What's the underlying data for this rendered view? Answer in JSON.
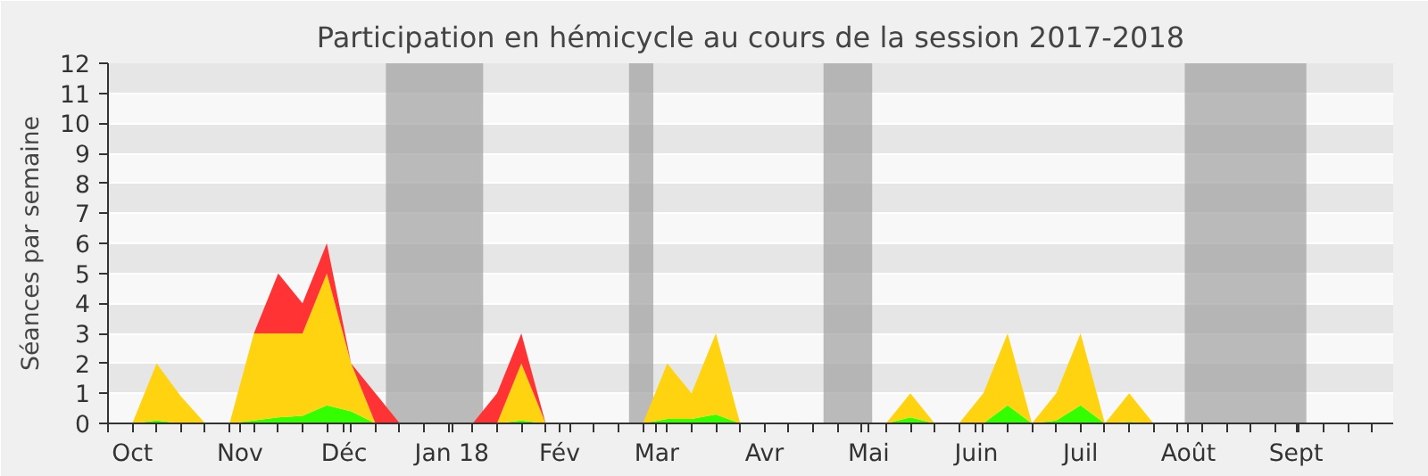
{
  "chart_data": {
    "type": "area",
    "title": "Participation en hémicycle au cours de la session 2017-2018",
    "ylabel": "Séances par semaine",
    "stacked": true,
    "x": [
      "2017-10-01",
      "2017-10-08",
      "2017-10-15",
      "2017-10-22",
      "2017-10-29",
      "2017-11-05",
      "2017-11-12",
      "2017-11-19",
      "2017-11-26",
      "2017-12-03",
      "2017-12-10",
      "2017-12-17",
      "2017-12-24",
      "2017-12-31",
      "2018-01-07",
      "2018-01-14",
      "2018-01-21",
      "2018-01-28",
      "2018-02-04",
      "2018-02-11",
      "2018-02-18",
      "2018-02-25",
      "2018-03-04",
      "2018-03-11",
      "2018-03-18",
      "2018-03-25",
      "2018-04-01",
      "2018-04-08",
      "2018-04-15",
      "2018-04-22",
      "2018-04-29",
      "2018-05-06",
      "2018-05-13",
      "2018-05-20",
      "2018-05-27",
      "2018-06-03",
      "2018-06-10",
      "2018-06-17",
      "2018-06-24",
      "2018-07-01",
      "2018-07-08",
      "2018-07-15",
      "2018-07-22",
      "2018-07-29",
      "2018-08-05",
      "2018-08-12",
      "2018-08-19",
      "2018-08-26",
      "2018-09-02",
      "2018-09-09",
      "2018-09-16",
      "2018-09-23"
    ],
    "series": [
      {
        "color": "#33ff00",
        "values": [
          0,
          0.1,
          0,
          0,
          0,
          0.1,
          0.2,
          0.25,
          0.6,
          0.4,
          0,
          0,
          0,
          0,
          0,
          0,
          0.1,
          0,
          0,
          0,
          0,
          0,
          0.15,
          0.15,
          0.3,
          0,
          0,
          0,
          0,
          0,
          0,
          0,
          0.2,
          0,
          0,
          0,
          0.6,
          0,
          0.1,
          0.6,
          0,
          0.05,
          0,
          0,
          0,
          0,
          0,
          0,
          0,
          0,
          0,
          0
        ]
      },
      {
        "color": "#ffd310",
        "values": [
          0,
          1.9,
          0.9,
          0,
          0,
          2.9,
          2.8,
          2.75,
          4.4,
          1.6,
          0,
          0,
          0,
          0,
          0,
          0,
          1.9,
          0,
          0,
          0,
          0,
          0,
          1.85,
          0.85,
          2.7,
          0,
          0,
          0,
          0,
          0,
          0,
          0,
          0.8,
          0,
          0,
          1,
          2.4,
          0,
          0.9,
          2.4,
          0,
          0.95,
          0,
          0,
          0,
          0,
          0,
          0,
          0,
          0,
          0,
          0
        ]
      },
      {
        "color": "#ff3333",
        "values": [
          0,
          0,
          0,
          0,
          0,
          0,
          2,
          1,
          1,
          0,
          1,
          0,
          0,
          0,
          0,
          1,
          1,
          0,
          0,
          0,
          0,
          0,
          0,
          0,
          0,
          0,
          0,
          0,
          0,
          0,
          0,
          0,
          0,
          0,
          0,
          0,
          0,
          0,
          0,
          0,
          0,
          0,
          0,
          0,
          0,
          0,
          0,
          0,
          0,
          0,
          0,
          0
        ]
      }
    ],
    "xlim": [
      "2017-09-24",
      "2018-09-29"
    ],
    "xticks": [
      {
        "value": "2017-09-24",
        "label": null
      },
      {
        "value": "2017-10-01",
        "label": "Oct"
      },
      {
        "value": "2017-10-08",
        "label": null
      },
      {
        "value": "2017-10-15",
        "label": null
      },
      {
        "value": "2017-10-22",
        "label": null
      },
      {
        "value": "2017-10-29",
        "label": null
      },
      {
        "value": "2017-11-01",
        "label": "Nov"
      },
      {
        "value": "2017-11-05",
        "label": null
      },
      {
        "value": "2017-11-12",
        "label": null
      },
      {
        "value": "2017-11-19",
        "label": null
      },
      {
        "value": "2017-11-26",
        "label": null
      },
      {
        "value": "2017-12-01",
        "label": "Déc"
      },
      {
        "value": "2017-12-03",
        "label": null
      },
      {
        "value": "2017-12-10",
        "label": null
      },
      {
        "value": "2017-12-17",
        "label": null
      },
      {
        "value": "2017-12-24",
        "label": null
      },
      {
        "value": "2017-12-31",
        "label": null
      },
      {
        "value": "2018-01-01",
        "label": "Jan 18"
      },
      {
        "value": "2018-01-07",
        "label": null
      },
      {
        "value": "2018-01-14",
        "label": null
      },
      {
        "value": "2018-01-21",
        "label": null
      },
      {
        "value": "2018-01-28",
        "label": null
      },
      {
        "value": "2018-02-01",
        "label": "Fév"
      },
      {
        "value": "2018-02-04",
        "label": null
      },
      {
        "value": "2018-02-11",
        "label": null
      },
      {
        "value": "2018-02-18",
        "label": null
      },
      {
        "value": "2018-02-25",
        "label": null
      },
      {
        "value": "2018-03-01",
        "label": "Mar"
      },
      {
        "value": "2018-03-04",
        "label": null
      },
      {
        "value": "2018-03-11",
        "label": null
      },
      {
        "value": "2018-03-18",
        "label": null
      },
      {
        "value": "2018-03-25",
        "label": null
      },
      {
        "value": "2018-04-01",
        "label": "Avr"
      },
      {
        "value": "2018-04-08",
        "label": null
      },
      {
        "value": "2018-04-15",
        "label": null
      },
      {
        "value": "2018-04-22",
        "label": null
      },
      {
        "value": "2018-04-29",
        "label": null
      },
      {
        "value": "2018-05-01",
        "label": "Mai"
      },
      {
        "value": "2018-05-06",
        "label": null
      },
      {
        "value": "2018-05-13",
        "label": null
      },
      {
        "value": "2018-05-20",
        "label": null
      },
      {
        "value": "2018-05-27",
        "label": null
      },
      {
        "value": "2018-06-01",
        "label": "Juin"
      },
      {
        "value": "2018-06-03",
        "label": null
      },
      {
        "value": "2018-06-10",
        "label": null
      },
      {
        "value": "2018-06-17",
        "label": null
      },
      {
        "value": "2018-06-24",
        "label": null
      },
      {
        "value": "2018-07-01",
        "label": "Juil"
      },
      {
        "value": "2018-07-08",
        "label": null
      },
      {
        "value": "2018-07-15",
        "label": null
      },
      {
        "value": "2018-07-22",
        "label": null
      },
      {
        "value": "2018-07-29",
        "label": null
      },
      {
        "value": "2018-08-01",
        "label": "Août"
      },
      {
        "value": "2018-08-05",
        "label": null
      },
      {
        "value": "2018-08-12",
        "label": null
      },
      {
        "value": "2018-08-19",
        "label": null
      },
      {
        "value": "2018-08-26",
        "label": null
      },
      {
        "value": "2018-09-01",
        "label": "Sept"
      },
      {
        "value": "2018-09-02",
        "label": null
      },
      {
        "value": "2018-09-09",
        "label": null
      },
      {
        "value": "2018-09-16",
        "label": null
      },
      {
        "value": "2018-09-23",
        "label": null
      }
    ],
    "ylim": [
      0,
      12
    ],
    "yticks": [
      0,
      1,
      2,
      3,
      4,
      5,
      6,
      7,
      8,
      9,
      10,
      11,
      12
    ],
    "grid": "y",
    "bands": [
      {
        "axis": "x",
        "from": "2017-12-13",
        "to": "2018-01-10",
        "color": "#a0a0a0"
      },
      {
        "axis": "x",
        "from": "2018-02-21",
        "to": "2018-02-28",
        "color": "#a0a0a0"
      },
      {
        "axis": "x",
        "from": "2018-04-18",
        "to": "2018-05-02",
        "color": "#a0a0a0"
      },
      {
        "axis": "x",
        "from": "2018-07-31",
        "to": "2018-09-04",
        "color": "#a0a0a0"
      }
    ]
  }
}
